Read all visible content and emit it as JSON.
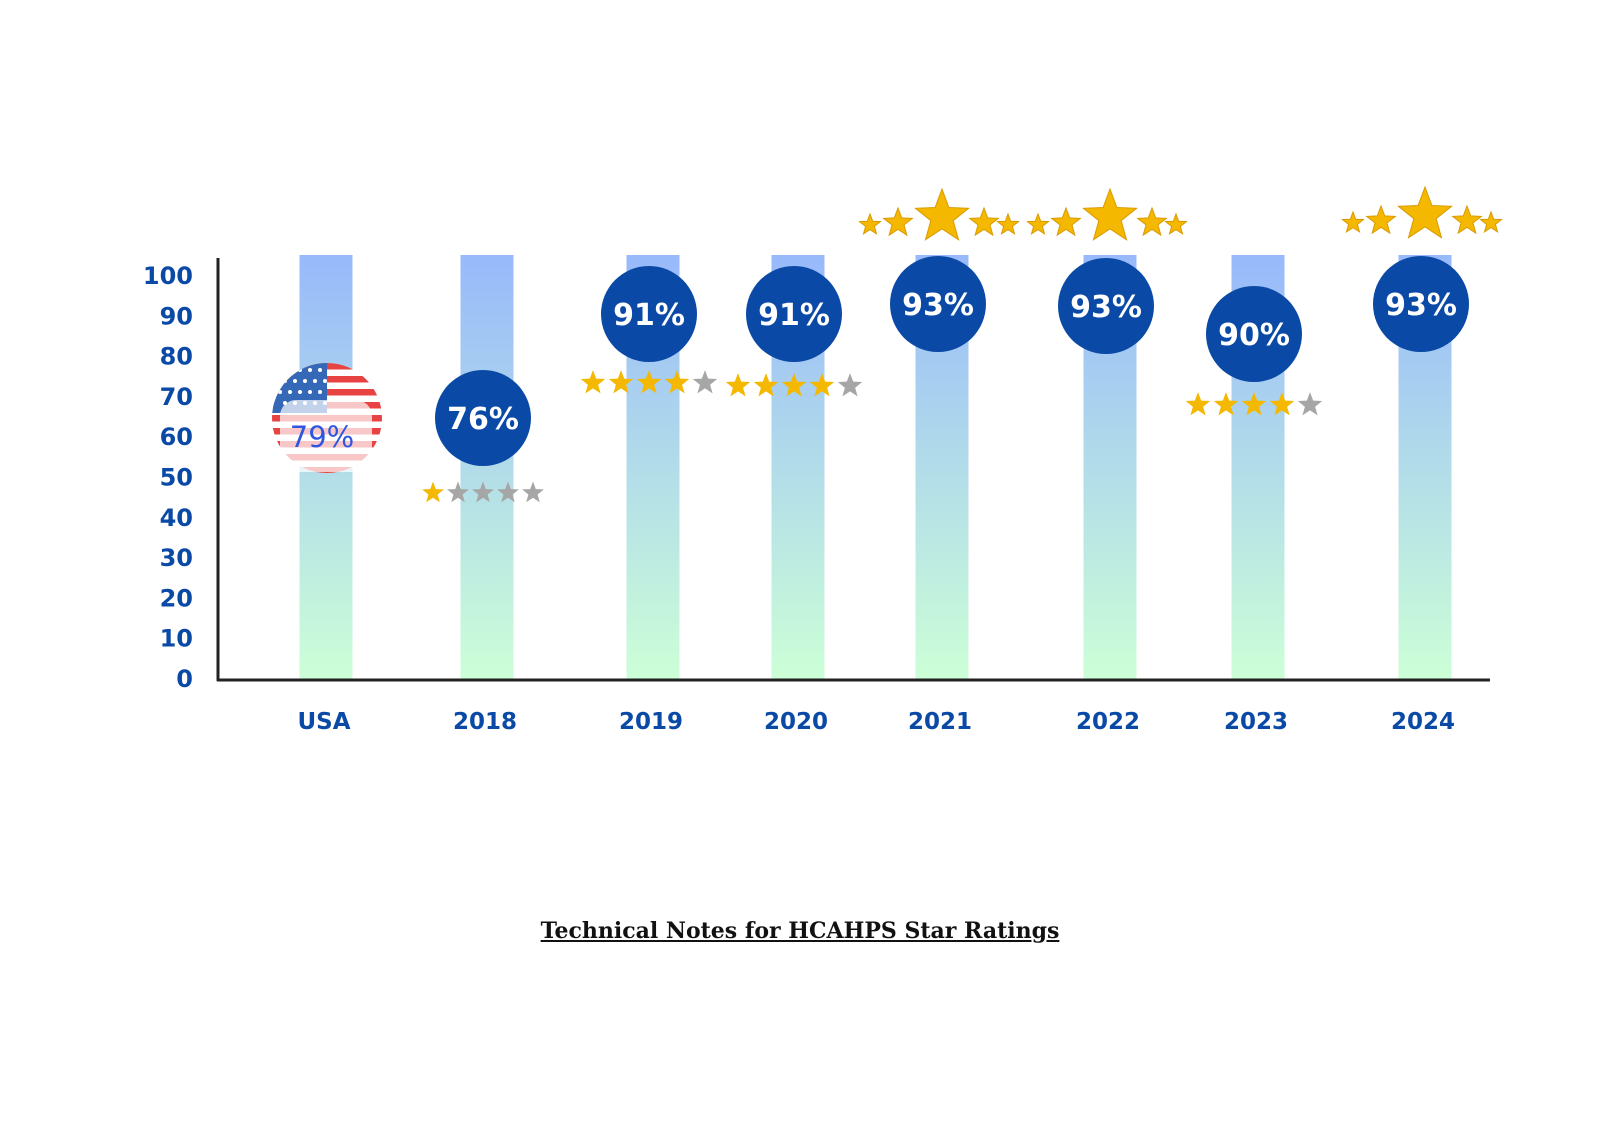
{
  "colors": {
    "bar_top": "#98b9fb",
    "bar_bottom": "#ccffd7",
    "badge": "#0a4aa6",
    "axis_text": "#0a4aa6",
    "star_on": "#f5b800",
    "star_off": "#a6a6a6",
    "axis_line": "#222222"
  },
  "icons": {
    "usa": "us-flag-icon",
    "rating": "star-icon"
  },
  "chart_data": {
    "type": "bar",
    "categories": [
      "USA",
      "2018",
      "2019",
      "2020",
      "2021",
      "2022",
      "2023",
      "2024"
    ],
    "values": [
      79,
      76,
      91,
      91,
      93,
      93,
      90,
      93
    ],
    "value_labels": [
      "79%",
      "76%",
      "91%",
      "91%",
      "93%",
      "93%",
      "90%",
      "93%"
    ],
    "star_ratings": [
      null,
      1,
      4,
      4,
      5,
      5,
      4,
      5
    ],
    "stars_max": 5,
    "ylim": [
      0,
      100
    ],
    "yticks": [
      0,
      10,
      20,
      30,
      40,
      50,
      60,
      70,
      80,
      90,
      100
    ],
    "grid": false,
    "legend": "none",
    "title": "",
    "xlabel": "",
    "ylabel": ""
  },
  "footer": {
    "link_text": "Technical Notes for HCAHPS Star Ratings"
  }
}
